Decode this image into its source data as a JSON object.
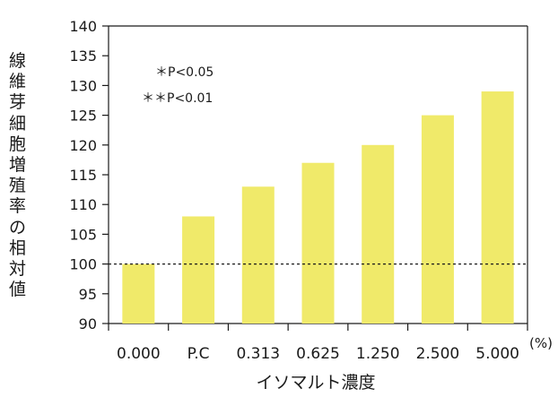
{
  "chart_data": {
    "type": "bar",
    "categories": [
      "0.000",
      "P.C",
      "0.313",
      "0.625",
      "1.250",
      "2.500",
      "5.000"
    ],
    "values": [
      100,
      108,
      113,
      117,
      120,
      125,
      129
    ],
    "xlabel": "イソマルト濃度",
    "x_unit": "(%)",
    "ylabel": "線維芽細胞増殖率の相対値",
    "ylim": [
      90,
      140
    ],
    "yticks": [
      90,
      95,
      100,
      105,
      110,
      115,
      120,
      125,
      130,
      135,
      140
    ],
    "reference_line": 100,
    "annotations": [
      "＊P<0.05",
      "＊＊P<0.01"
    ],
    "bar_color": "#f0ea6a",
    "grid": false
  }
}
